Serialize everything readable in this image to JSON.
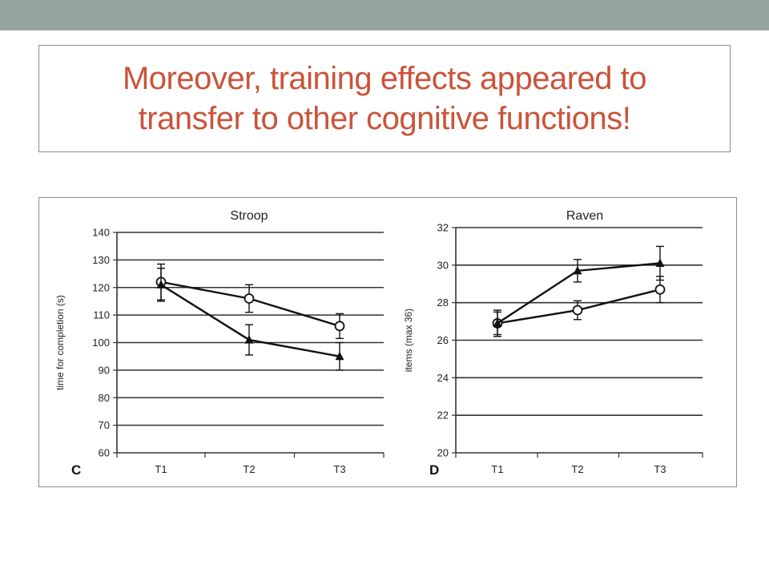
{
  "slide": {
    "title": "Moreover, training effects appeared to transfer to other cognitive functions!",
    "top_bar_color": "#95a49c",
    "title_color": "#c9543a"
  },
  "chart_data": [
    {
      "type": "line",
      "title": "Stroop",
      "panel_label": "C",
      "xlabel": "",
      "ylabel": "time for completion (s)",
      "categories": [
        "T1",
        "T2",
        "T3"
      ],
      "ylim": [
        60,
        140
      ],
      "yticks": [
        60,
        70,
        80,
        90,
        100,
        110,
        120,
        130,
        140
      ],
      "grid": true,
      "series": [
        {
          "marker": "circle-open",
          "values": [
            122,
            116,
            106
          ],
          "error": [
            6.5,
            5,
            4.5
          ]
        },
        {
          "marker": "triangle-filled",
          "values": [
            121,
            101,
            95
          ],
          "error": [
            6,
            5.5,
            5
          ]
        }
      ]
    },
    {
      "type": "line",
      "title": "Raven",
      "panel_label": "D",
      "xlabel": "",
      "ylabel": "items (max 36)",
      "categories": [
        "T1",
        "T2",
        "T3"
      ],
      "ylim": [
        20,
        32
      ],
      "yticks": [
        20,
        22,
        24,
        26,
        28,
        30,
        32
      ],
      "grid": true,
      "series": [
        {
          "marker": "circle-open",
          "values": [
            26.9,
            27.6,
            28.7
          ],
          "error": [
            0.7,
            0.5,
            0.7
          ]
        },
        {
          "marker": "triangle-filled",
          "values": [
            26.9,
            29.7,
            30.1
          ],
          "error": [
            0.6,
            0.6,
            0.9
          ]
        }
      ]
    }
  ]
}
